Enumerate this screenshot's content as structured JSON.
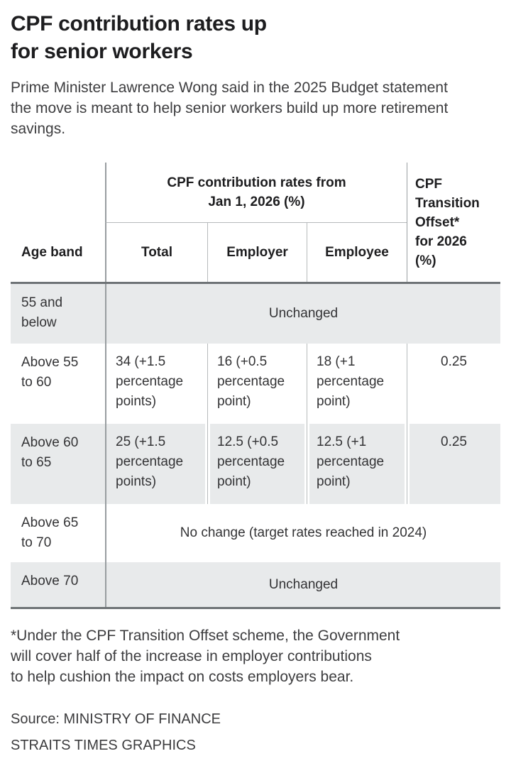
{
  "title": "CPF contribution rates up\nfor senior workers",
  "subtitle": "Prime Minister Lawrence Wong said in the 2025 Budget statement the move is meant to help senior workers build up more retirement savings.",
  "table": {
    "age_band_header": "Age band",
    "group_header": "CPF contribution rates from\nJan 1, 2026 (%)",
    "sub_headers": [
      "Total",
      "Employer",
      "Employee"
    ],
    "offset_header": "CPF\nTransition\nOffset*\nfor 2026\n(%)",
    "rows": [
      {
        "age_band": "55 and\nbelow",
        "merged": "Unchanged"
      },
      {
        "age_band": "Above 55\nto 60",
        "total": "34 (+1.5\npercentage\npoints)",
        "employer": "16 (+0.5\npercentage\npoint)",
        "employee": "18 (+1\npercentage\npoint)",
        "offset": "0.25"
      },
      {
        "age_band": "Above 60\nto 65",
        "total": "25 (+1.5\npercentage\npoints)",
        "employer": "12.5 (+0.5\npercentage\npoint)",
        "employee": "12.5 (+1\npercentage\npoint)",
        "offset": "0.25"
      },
      {
        "age_band": "Above 65\nto 70",
        "merged": "No change (target rates reached in 2024)"
      },
      {
        "age_band": "Above 70",
        "merged": "Unchanged"
      }
    ]
  },
  "footnote": "*Under the CPF Transition Offset scheme, the Government\nwill cover half of the increase in employer contributions\nto help cushion the impact on costs employers bear.",
  "source": {
    "line1": "Source: MINISTRY OF FINANCE",
    "line2": "STRAITS TIMES GRAPHICS"
  },
  "colors": {
    "row_shade": "#e8eaeb",
    "rule_light": "#b6babc",
    "rule_dark": "#6e7376",
    "text": "#1d1d1f"
  },
  "chart_data": {
    "type": "table",
    "title": "CPF contribution rates up for senior workers",
    "columns": [
      "Age band",
      "Total (%)",
      "Employer (%)",
      "Employee (%)",
      "CPF Transition Offset for 2026 (%)"
    ],
    "column_group": "CPF contribution rates from Jan 1, 2026 (%)",
    "rows": [
      [
        "55 and below",
        "Unchanged",
        "Unchanged",
        "Unchanged",
        "Unchanged"
      ],
      [
        "Above 55 to 60",
        "34 (+1.5 percentage points)",
        "16 (+0.5 percentage point)",
        "18 (+1 percentage point)",
        "0.25"
      ],
      [
        "Above 60 to 65",
        "25 (+1.5 percentage points)",
        "12.5 (+0.5 percentage point)",
        "12.5 (+1 percentage point)",
        "0.25"
      ],
      [
        "Above 65 to 70",
        "No change (target rates reached in 2024)",
        "No change (target rates reached in 2024)",
        "No change (target rates reached in 2024)",
        ""
      ],
      [
        "Above 70",
        "Unchanged",
        "Unchanged",
        "Unchanged",
        ""
      ]
    ]
  }
}
